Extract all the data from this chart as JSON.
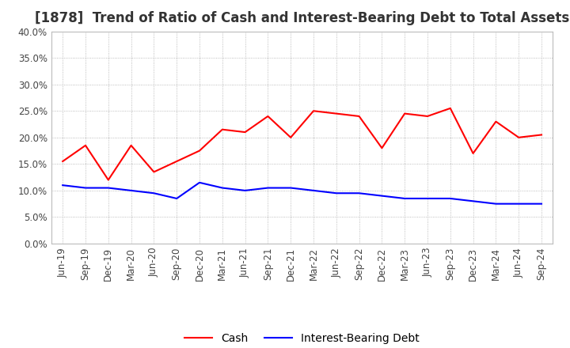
{
  "title": "[1878]  Trend of Ratio of Cash and Interest-Bearing Debt to Total Assets",
  "x_labels": [
    "Jun-19",
    "Sep-19",
    "Dec-19",
    "Mar-20",
    "Jun-20",
    "Sep-20",
    "Dec-20",
    "Mar-21",
    "Jun-21",
    "Sep-21",
    "Dec-21",
    "Mar-22",
    "Jun-22",
    "Sep-22",
    "Dec-22",
    "Mar-23",
    "Jun-23",
    "Sep-23",
    "Dec-23",
    "Mar-24",
    "Jun-24",
    "Sep-24"
  ],
  "cash": [
    15.5,
    18.5,
    12.0,
    18.5,
    13.5,
    15.5,
    17.5,
    21.5,
    21.0,
    24.0,
    20.0,
    25.0,
    24.5,
    24.0,
    18.0,
    24.5,
    24.0,
    25.5,
    17.0,
    23.0,
    20.0,
    20.5
  ],
  "ibd": [
    11.0,
    10.5,
    10.5,
    10.0,
    9.5,
    8.5,
    11.5,
    10.5,
    10.0,
    10.5,
    10.5,
    10.0,
    9.5,
    9.5,
    9.0,
    8.5,
    8.5,
    8.5,
    8.0,
    7.5,
    7.5,
    7.5
  ],
  "cash_color": "#ff0000",
  "ibd_color": "#0000ff",
  "ylim": [
    0.0,
    40.0
  ],
  "yticks": [
    0.0,
    5.0,
    10.0,
    15.0,
    20.0,
    25.0,
    30.0,
    35.0,
    40.0
  ],
  "background_color": "#ffffff",
  "plot_bg_color": "#ffffff",
  "grid_color": "#aaaaaa",
  "title_fontsize": 12,
  "tick_fontsize": 8.5,
  "legend_fontsize": 10
}
